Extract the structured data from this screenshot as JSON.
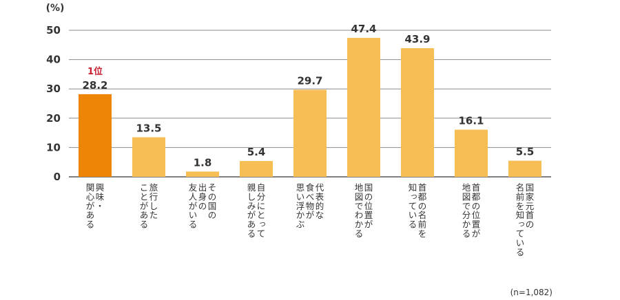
{
  "chart_data": {
    "type": "bar",
    "unit_label": "(%)",
    "categories": [
      "興味・関心がある",
      "旅行したことがある",
      "その国の出身の友人がいる",
      "自分にとって親しみがある",
      "代表的な食べ物が思い浮かぶ",
      "国の位置が地図でわかる",
      "首都の名前を知っている",
      "首都の位置が地図で分かる",
      "国家元首の名前を知っている"
    ],
    "category_lines": [
      [
        "興味・",
        "関心がある"
      ],
      [
        "旅行した",
        "ことがある"
      ],
      [
        "その国の",
        "出身の",
        "友人がいる"
      ],
      [
        "自分にとって",
        "親しみがある"
      ],
      [
        "代表的な",
        "食べ物が",
        "思い浮かぶ"
      ],
      [
        "国の位置が",
        "地図でわかる"
      ],
      [
        "首都の名前を",
        "知っている"
      ],
      [
        "首都の位置が",
        "地図で分かる"
      ],
      [
        "国家元首の",
        "名前を知っている"
      ]
    ],
    "values": [
      28.2,
      13.5,
      1.8,
      5.4,
      29.7,
      47.4,
      43.9,
      16.1,
      5.5
    ],
    "value_labels": [
      "28.2",
      "13.5",
      "1.8",
      "5.4",
      "29.7",
      "47.4",
      "43.9",
      "16.1",
      "5.5"
    ],
    "highlight_index": 0,
    "highlight_label": "1位",
    "ylim": [
      0,
      50
    ],
    "yticks": [
      0,
      10,
      20,
      30,
      40,
      50
    ],
    "grid": true,
    "colors": {
      "bar": "#f7be55",
      "highlight_bar": "#ef8506",
      "highlight_text": "#c8202f",
      "grid": "#8c8c8c",
      "text": "#333333"
    }
  },
  "footnote": "(n=1,082)"
}
